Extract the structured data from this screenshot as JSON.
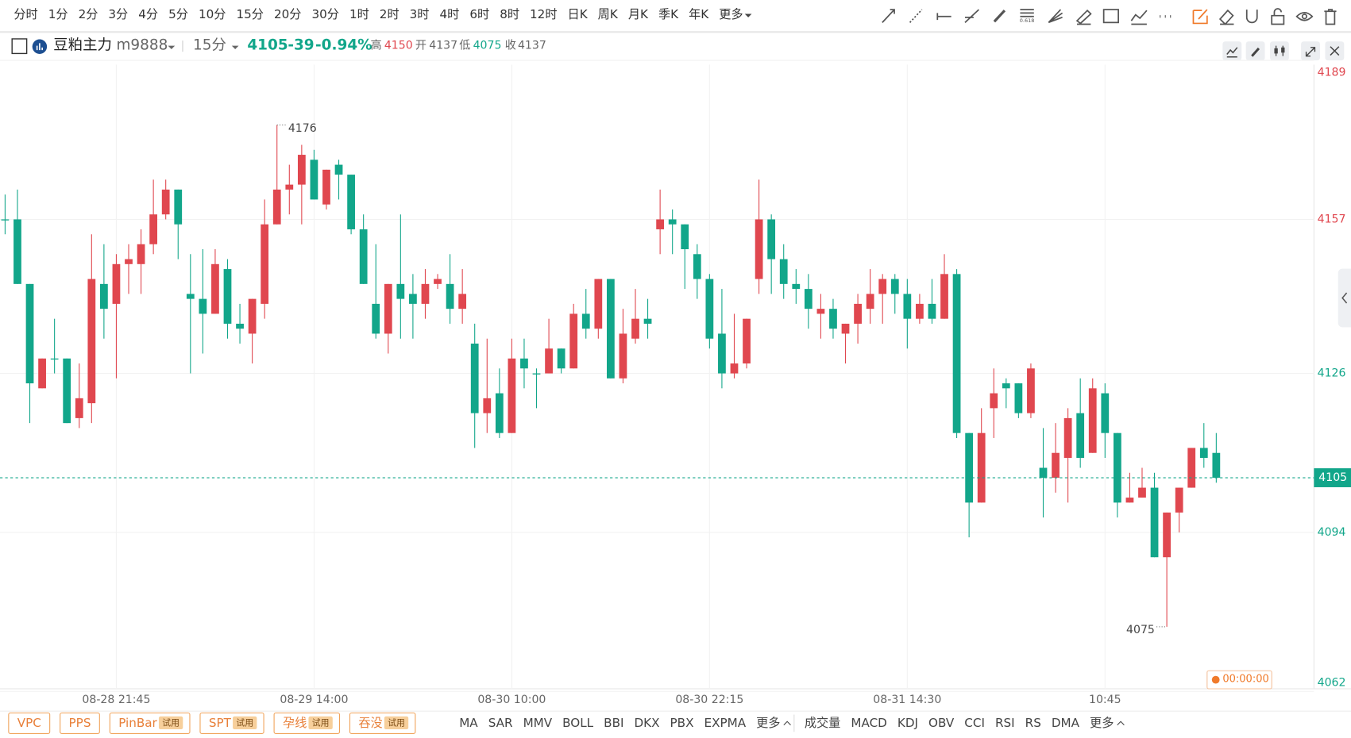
{
  "toolbar": {
    "periods": [
      {
        "label": "分时"
      },
      {
        "label": "1分"
      },
      {
        "label": "2分"
      },
      {
        "label": "3分"
      },
      {
        "label": "4分"
      },
      {
        "label": "5分"
      },
      {
        "label": "10分"
      },
      {
        "label": "15分",
        "active": true
      },
      {
        "label": "20分"
      },
      {
        "label": "30分"
      },
      {
        "label": "1时"
      },
      {
        "label": "2时"
      },
      {
        "label": "3时"
      },
      {
        "label": "4时"
      },
      {
        "label": "6时"
      },
      {
        "label": "8时"
      },
      {
        "label": "12时"
      },
      {
        "label": "日K"
      },
      {
        "label": "周K"
      },
      {
        "label": "月K"
      },
      {
        "label": "季K"
      },
      {
        "label": "年K"
      },
      {
        "label": "更多"
      }
    ],
    "fib_icon_text": "0.618"
  },
  "header": {
    "name": "豆粕主力",
    "code": "m9888",
    "period": "15分",
    "price": "4105",
    "change": "-39",
    "change_pct": "-0.94%",
    "high_label": "高",
    "high": "4150",
    "open_label": "开",
    "open": "4137",
    "low_label": "低",
    "low": "4075",
    "close_label": "收",
    "close": "4137"
  },
  "chart_data": {
    "type": "candlestick",
    "up_color": "#e0474f",
    "down_color": "#12a68a",
    "categories": [
      null,
      null,
      null,
      null,
      null,
      null,
      null,
      null,
      null,
      "08-28 21:45",
      null,
      null,
      null,
      null,
      null,
      null,
      null,
      null,
      null,
      null,
      null,
      null,
      null,
      null,
      null,
      "08-29 14:00",
      null,
      null,
      null,
      null,
      null,
      null,
      null,
      null,
      null,
      null,
      null,
      null,
      null,
      null,
      null,
      "08-30 10:00",
      null,
      null,
      null,
      null,
      null,
      null,
      null,
      null,
      null,
      null,
      null,
      null,
      null,
      null,
      null,
      "08-30 22:15",
      null,
      null,
      null,
      null,
      null,
      null,
      null,
      null,
      null,
      null,
      null,
      null,
      null,
      null,
      null,
      "08-31 14:30",
      null,
      null,
      null,
      null,
      null,
      null,
      null,
      null,
      null,
      null,
      null,
      null,
      null,
      null,
      null,
      "10:45",
      null,
      null,
      null,
      null,
      null,
      null,
      null,
      null,
      null
    ],
    "open": [
      4157,
      4157,
      4144,
      4123,
      4129,
      4129,
      4117,
      4120,
      4144,
      4140,
      4148,
      4148,
      4152,
      4158,
      4163,
      4142,
      4141,
      4138,
      4147,
      4136,
      4134,
      4140,
      4156,
      4163,
      4164,
      4169,
      4160,
      4168,
      4166,
      4155,
      4140,
      4134,
      4144,
      4142,
      4140,
      4144,
      4144,
      4139,
      4132,
      4118,
      4122,
      4114,
      4129,
      4126,
      4126,
      4131,
      4127,
      4138,
      4135,
      4145,
      4125,
      4133,
      4137,
      4155,
      4157,
      4156,
      4150,
      4145,
      4134,
      4126,
      4128,
      4145,
      4157,
      4149,
      4144,
      4143,
      4138,
      4139,
      4134,
      4136,
      4139,
      4142,
      4145,
      4142,
      4137,
      4140,
      4137,
      4146,
      4114,
      4100,
      4119,
      4124,
      4124,
      4118,
      4107,
      4105,
      4109,
      4118,
      4110,
      4122,
      4114,
      4100,
      4101,
      4103,
      4089,
      4098,
      4103,
      4111,
      4110
    ],
    "high": [
      4162,
      4163,
      4144,
      4129,
      4137,
      4129,
      4128,
      4154,
      4152,
      4150,
      4152,
      4155,
      4165,
      4165,
      4163,
      4150,
      4151,
      4151,
      4149,
      4140,
      4141,
      4161,
      4176,
      4168,
      4172,
      4171,
      4167,
      4169,
      4166,
      4158,
      4152,
      4144,
      4158,
      4146,
      4147,
      4146,
      4150,
      4147,
      4136,
      4133,
      4127,
      4133,
      4133,
      4127,
      4137,
      4131,
      4140,
      4143,
      4145,
      4145,
      4139,
      4143,
      4141,
      4163,
      4159,
      4156,
      4152,
      4146,
      4143,
      4138,
      4137,
      4165,
      4158,
      4152,
      4147,
      4146,
      4142,
      4141,
      4136,
      4142,
      4147,
      4146,
      4146,
      4145,
      4142,
      4145,
      4150,
      4147,
      4114,
      4119,
      4127,
      4125,
      4124,
      4128,
      4115,
      4116,
      4119,
      4125,
      4125,
      4124,
      4114,
      4106,
      4107,
      4106,
      4098,
      4103,
      4111,
      4116,
      4114
    ],
    "low": [
      4154,
      4144,
      4116,
      4123,
      4126,
      4116,
      4115,
      4116,
      4133,
      4125,
      4142,
      4142,
      4150,
      4157,
      4149,
      4126,
      4130,
      4138,
      4133,
      4132,
      4128,
      4137,
      4156,
      4158,
      4156,
      4161,
      4159,
      4161,
      4154,
      4144,
      4133,
      4130,
      4133,
      4133,
      4137,
      4143,
      4136,
      4136,
      4111,
      4114,
      4113,
      4114,
      4123,
      4119,
      4126,
      4126,
      4127,
      4133,
      4133,
      4125,
      4124,
      4132,
      4133,
      4150,
      4150,
      4143,
      4141,
      4131,
      4123,
      4125,
      4127,
      4142,
      4142,
      4141,
      4140,
      4135,
      4133,
      4133,
      4128,
      4132,
      4136,
      4136,
      4138,
      4131,
      4136,
      4136,
      4137,
      4113,
      4093,
      4100,
      4113,
      4119,
      4117,
      4117,
      4097,
      4102,
      4100,
      4107,
      4110,
      4109,
      4097,
      4100,
      4101,
      4089,
      4075,
      4094,
      4103,
      4107,
      4104
    ],
    "close": [
      4157,
      4144,
      4124,
      4129,
      4129,
      4116,
      4121,
      4145,
      4139,
      4148,
      4149,
      4152,
      4158,
      4163,
      4156,
      4141,
      4138,
      4148,
      4136,
      4135,
      4141,
      4156,
      4163,
      4164,
      4170,
      4161,
      4167,
      4166,
      4155,
      4144,
      4134,
      4144,
      4141,
      4140,
      4144,
      4145,
      4139,
      4142,
      4118,
      4121,
      4114,
      4129,
      4127,
      4126,
      4131,
      4127,
      4138,
      4135,
      4145,
      4125,
      4134,
      4137,
      4136,
      4157,
      4156,
      4151,
      4145,
      4133,
      4126,
      4128,
      4137,
      4157,
      4149,
      4144,
      4143,
      4139,
      4139,
      4135,
      4136,
      4140,
      4142,
      4145,
      4142,
      4137,
      4140,
      4137,
      4146,
      4114,
      4100,
      4114,
      4122,
      4123,
      4118,
      4127,
      4105,
      4110,
      4117,
      4109,
      4123,
      4114,
      4100,
      4101,
      4103,
      4089,
      4098,
      4103,
      4111,
      4109,
      4105
    ],
    "ylim": [
      4062,
      4189
    ],
    "yticks": [
      4189,
      4157,
      4126,
      4094,
      4062
    ],
    "ytick_colors": [
      "#e0474f",
      "#e0474f",
      "#12a68a",
      "#12a68a",
      "#12a68a"
    ],
    "grid": true,
    "last_price": 4105,
    "max_label": 4176,
    "min_label": 4075,
    "countdown": "00:00:00"
  },
  "bottom": {
    "patterns": [
      {
        "label": "VPC"
      },
      {
        "label": "PPS"
      },
      {
        "label": "PinBar",
        "tag": "试用"
      },
      {
        "label": "SPT",
        "tag": "试用"
      },
      {
        "label": "孕线",
        "tag": "试用"
      },
      {
        "label": "吞没",
        "tag": "试用"
      }
    ],
    "main_indicators": [
      "MA",
      "SAR",
      "MMV",
      "BOLL",
      "BBI",
      "DKX",
      "PBX",
      "EXPMA",
      "更多"
    ],
    "sub_indicators": [
      "成交量",
      "MACD",
      "KDJ",
      "OBV",
      "CCI",
      "RSI",
      "RS",
      "DMA",
      "更多"
    ]
  }
}
